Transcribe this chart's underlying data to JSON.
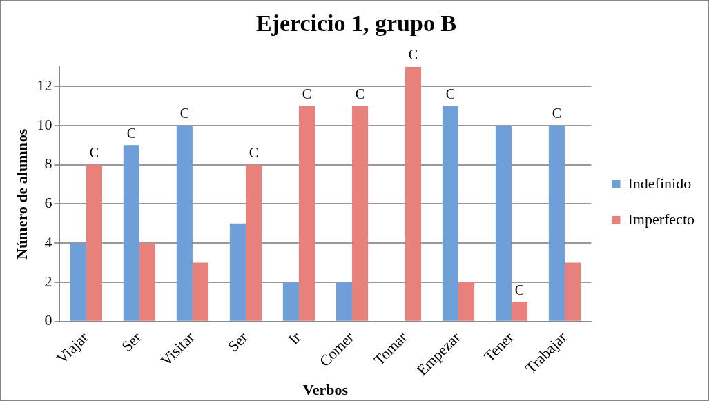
{
  "chart_data": {
    "type": "bar",
    "title": "Ejercicio 1, grupo B",
    "xlabel": "Verbos",
    "ylabel": "Número de alumnos",
    "categories": [
      "Viajar",
      "Ser",
      "Visitar",
      "Ser",
      "Ir",
      "Comer",
      "Tomar",
      "Empezar",
      "Tener",
      "Trabajar"
    ],
    "series": [
      {
        "name": "Indefinido",
        "color": "#6f9fd8",
        "values": [
          4,
          9,
          10,
          5,
          2,
          2,
          0,
          11,
          10,
          10
        ]
      },
      {
        "name": "Imperfecto",
        "color": "#e8807c",
        "values": [
          8,
          4,
          3,
          8,
          11,
          11,
          13,
          2,
          1,
          3
        ]
      }
    ],
    "ylim": [
      0,
      13
    ],
    "yticks": [
      0,
      2,
      4,
      6,
      8,
      10,
      12
    ],
    "grid": "y",
    "legend": "right",
    "annotations": [
      {
        "text": "C",
        "x": "Viajar",
        "y": 8
      },
      {
        "text": "C",
        "x": "Ser",
        "y": 9
      },
      {
        "text": "C",
        "x": "Visitar",
        "y": 10
      },
      "C",
      {
        "text": "C",
        "x": "Ir",
        "y": 11
      },
      {
        "text": "C",
        "x": "Comer",
        "y": 11
      },
      {
        "text": "C",
        "x": "Tomar",
        "y": 13
      },
      {
        "text": "C",
        "x": "Empezar",
        "y": 11
      },
      {
        "text": "C",
        "x": "Tener",
        "y": 1
      },
      {
        "text": "C",
        "x": "Trabajar",
        "y": 10
      }
    ]
  }
}
